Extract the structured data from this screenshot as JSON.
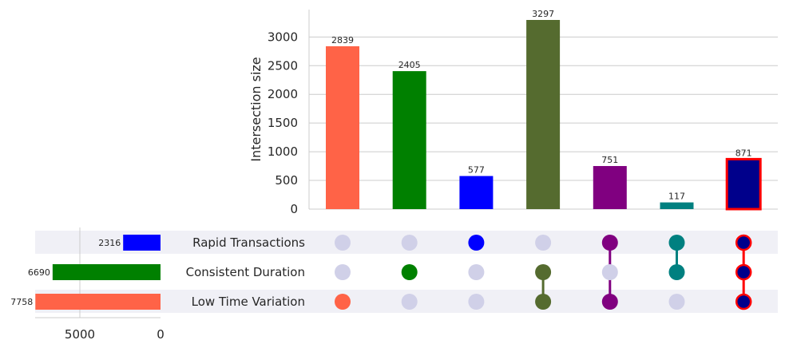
{
  "chart_data": {
    "type": "bar",
    "subtype": "upset",
    "ylabel": "Intersection size",
    "ylim": [
      0,
      3500
    ],
    "yticks": [
      0,
      500,
      1000,
      1500,
      2000,
      2500,
      3000
    ],
    "grid": true,
    "sets": [
      {
        "name": "Rapid Transactions",
        "size": 2316,
        "color": "#0000ff"
      },
      {
        "name": "Consistent Duration",
        "size": 6690,
        "color": "#008000"
      },
      {
        "name": "Low Time Variation",
        "size": 7758,
        "color": "#ff6347"
      }
    ],
    "set_size_ticks": [
      5000,
      0
    ],
    "set_size_max": 8000,
    "intersections": [
      {
        "members": [
          "Low Time Variation"
        ],
        "value": 2839,
        "color": "#ff6347",
        "highlighted": false
      },
      {
        "members": [
          "Consistent Duration"
        ],
        "value": 2405,
        "color": "#008000",
        "highlighted": false
      },
      {
        "members": [
          "Rapid Transactions"
        ],
        "value": 577,
        "color": "#0000ff",
        "highlighted": false
      },
      {
        "members": [
          "Consistent Duration",
          "Low Time Variation"
        ],
        "value": 3297,
        "color": "#556b2f",
        "highlighted": false
      },
      {
        "members": [
          "Rapid Transactions",
          "Low Time Variation"
        ],
        "value": 751,
        "color": "#800080",
        "highlighted": false
      },
      {
        "members": [
          "Rapid Transactions",
          "Consistent Duration"
        ],
        "value": 117,
        "color": "#008080",
        "highlighted": false
      },
      {
        "members": [
          "Rapid Transactions",
          "Consistent Duration",
          "Low Time Variation"
        ],
        "value": 871,
        "color": "#00008b",
        "highlighted": true,
        "outline_color": "#ff0000"
      }
    ],
    "inactive_dot_color": "#d0d0e8",
    "stripe_color": "#f0f0f6"
  }
}
